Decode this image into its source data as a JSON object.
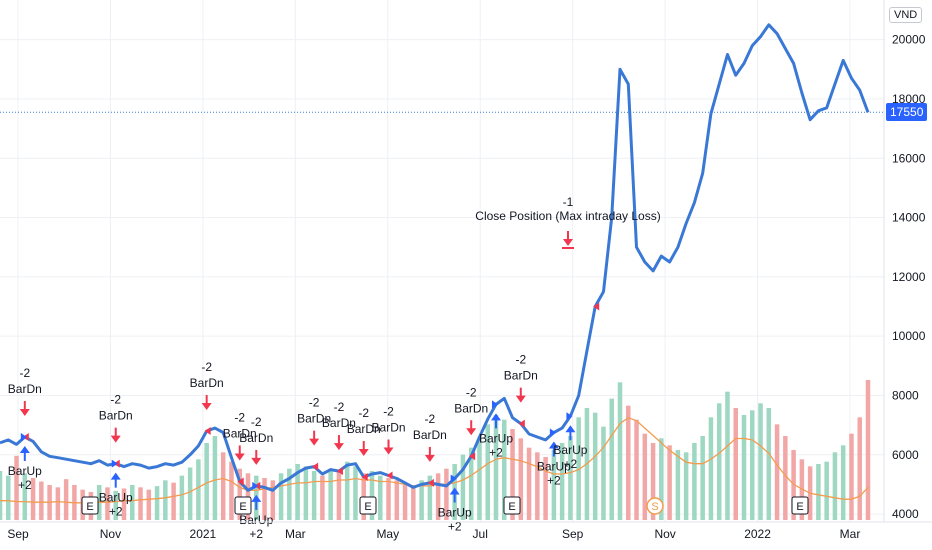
{
  "currency_label": "VND",
  "last_price_label": "17550",
  "colors": {
    "price_line": "#3a78d6",
    "ma_line": "#f39c4f",
    "vol_up": "#9ed7c2",
    "vol_down": "#f2a7a7",
    "arrow_sell": "#f2364e",
    "arrow_buy": "#2962ff",
    "grid": "#eef0f4",
    "last_price_bg": "#2962ff"
  },
  "event_markers": [
    {
      "label": "E"
    },
    {
      "label": "E"
    },
    {
      "label": "E"
    },
    {
      "label": "E"
    },
    {
      "label": "S"
    },
    {
      "label": "E"
    }
  ],
  "close_annotation": {
    "qty": "-1",
    "text": "Close Position (Max intraday Loss)"
  },
  "chart_data": {
    "type": "line",
    "x_ticks": [
      "Sep",
      "Nov",
      "2021",
      "Mar",
      "May",
      "Jul",
      "Sep",
      "Nov",
      "2022",
      "Mar"
    ],
    "y_ticks": [
      4000,
      6000,
      8000,
      10000,
      12000,
      14000,
      16000,
      18000,
      20000
    ],
    "ylim": [
      3800,
      21000
    ],
    "last_price": 17550,
    "series": [
      {
        "values": [
          6400,
          6500,
          6350,
          6600,
          6450,
          6100,
          5950,
          5900,
          5850,
          5800,
          5750,
          5700,
          5800,
          5650,
          5700,
          5600,
          5700,
          5650,
          5550,
          5600,
          5700,
          5650,
          5750,
          6000,
          6300,
          6800,
          6900,
          6750,
          5900,
          5100,
          4800,
          4950,
          4900,
          4800,
          5050,
          5200,
          5400,
          5550,
          5600,
          5350,
          5500,
          5450,
          5650,
          5700,
          5250,
          5350,
          5400,
          5300,
          5200,
          5050,
          4900,
          5000,
          5050,
          5000,
          4950,
          5200,
          5500,
          5950,
          6600,
          7200,
          7700,
          7900,
          7250,
          7050,
          6700,
          6600,
          6500,
          6750,
          6900,
          7300,
          8000,
          9500,
          11000,
          11500,
          14000,
          19000,
          18500,
          13000,
          12500,
          12200,
          12700,
          12500,
          13000,
          13800,
          14500,
          15500,
          17500,
          18500,
          19500,
          18800,
          19200,
          19800,
          20100,
          20500,
          20200,
          19700,
          19200,
          18200,
          17300,
          17600,
          17700,
          18500,
          19300,
          18700,
          18300,
          17550
        ]
      },
      {
        "values": [
          4450,
          4450,
          4420,
          4420,
          4400,
          4400,
          4400,
          4420,
          4400,
          4380,
          4380,
          4380,
          4400,
          4400,
          4420,
          4450,
          4450,
          4480,
          4500,
          4520,
          4550,
          4600,
          4650,
          4750,
          4900,
          5050,
          5150,
          5200,
          5100,
          4900,
          4800,
          4800,
          4850,
          4900,
          4950,
          5000,
          5050,
          5050,
          5100,
          5100,
          5100,
          5150,
          5150,
          5200,
          5150,
          5150,
          5100,
          5100,
          5050,
          5000,
          4950,
          4950,
          4950,
          5000,
          5000,
          5050,
          5150,
          5300,
          5500,
          5700,
          5850,
          5900,
          5850,
          5800,
          5700,
          5600,
          5450,
          5350,
          5350,
          5400,
          5500,
          5700,
          5950,
          6250,
          6650,
          7050,
          7250,
          7150,
          6900,
          6650,
          6400,
          6150,
          5950,
          5750,
          5700,
          5700,
          5850,
          6050,
          6300,
          6550,
          6550,
          6500,
          6300,
          6050,
          5650,
          5300,
          5000,
          4850,
          4700,
          4650,
          4600,
          4550,
          4500,
          4500,
          4600,
          4900
        ]
      }
    ],
    "markers": [
      {
        "kind": "sell",
        "label": "BarDn",
        "qty": "-2"
      },
      {
        "kind": "buy",
        "label": "BarUp",
        "qty": "+2"
      },
      {
        "kind": "sell",
        "label": "BarDn",
        "qty": "-2"
      },
      {
        "kind": "buy",
        "label": "BarUp",
        "qty": "+2"
      },
      {
        "kind": "sell",
        "label": "BarDn",
        "qty": "-2"
      },
      {
        "kind": "sell",
        "label": "BarDn",
        "qty": "-2"
      },
      {
        "kind": "sell",
        "label": "BarDn",
        "qty": "-2"
      },
      {
        "kind": "buy",
        "label": "BarUp",
        "qty": "+2"
      },
      {
        "kind": "sell",
        "label": "BarDn",
        "qty": "-2"
      },
      {
        "kind": "sell",
        "label": "BarDn",
        "qty": "-2"
      },
      {
        "kind": "sell",
        "label": "BarDn",
        "qty": "-2"
      },
      {
        "kind": "sell",
        "label": "BarDn",
        "qty": "-2"
      },
      {
        "kind": "sell",
        "label": "BarDn",
        "qty": "-2"
      },
      {
        "kind": "buy",
        "label": "BarUp",
        "qty": "+2"
      },
      {
        "kind": "sell",
        "label": "BarDn",
        "qty": "-2"
      },
      {
        "kind": "sell",
        "label": "BarDn",
        "qty": "-2"
      },
      {
        "kind": "buy",
        "label": "BarUp",
        "qty": "+2"
      },
      {
        "kind": "buy",
        "label": "BarUp",
        "qty": "+2"
      },
      {
        "kind": "buy",
        "label": "BarUp",
        "qty": "+2"
      }
    ],
    "volume": [
      42,
      38,
      55,
      40,
      36,
      33,
      30,
      28,
      35,
      30,
      26,
      24,
      30,
      28,
      25,
      27,
      30,
      28,
      26,
      29,
      34,
      32,
      38,
      45,
      52,
      66,
      72,
      58,
      50,
      44,
      40,
      38,
      36,
      34,
      40,
      44,
      48,
      46,
      42,
      38,
      44,
      42,
      50,
      46,
      40,
      42,
      38,
      36,
      34,
      32,
      30,
      34,
      38,
      40,
      44,
      48,
      56,
      62,
      70,
      82,
      90,
      86,
      78,
      70,
      62,
      58,
      54,
      60,
      66,
      72,
      88,
      96,
      92,
      80,
      104,
      118,
      98,
      86,
      74,
      66,
      70,
      64,
      60,
      58,
      66,
      72,
      88,
      100,
      110,
      96,
      90,
      94,
      100,
      96,
      82,
      72,
      60,
      52,
      46,
      48,
      50,
      58,
      64,
      74,
      88,
      120
    ]
  }
}
